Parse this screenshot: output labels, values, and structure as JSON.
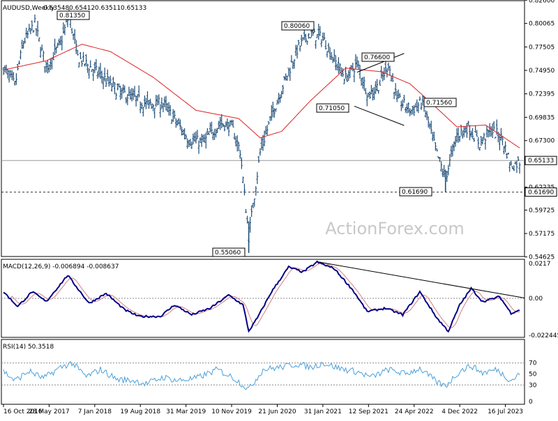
{
  "chart_data": [
    {
      "type": "bar",
      "subtype": "ohlc",
      "title": "AUDUSD,Weekly",
      "ohlc": {
        "open": "0.63548",
        "high": "0.65412",
        "low": "0.63511",
        "close": "0.65133"
      },
      "ylim": [
        0.5467,
        0.8262
      ],
      "y_tick_labels": [
        "0.82600",
        "0.80065",
        "0.77505",
        "0.74950",
        "0.72395",
        "0.69835",
        "0.67300",
        "0.62235",
        "0.59725",
        "0.57175",
        "0.54625"
      ],
      "x_tick_labels": [
        "16 Oct 2016",
        "28 May 2017",
        "7 Jan 2018",
        "19 Aug 2018",
        "31 Mar 2019",
        "10 Nov 2019",
        "21 Jun 2020",
        "31 Jan 2021",
        "12 Sep 2021",
        "24 Apr 2022",
        "4 Dec 2022",
        "16 Jul 2023"
      ],
      "current_price_label": "0.65133",
      "support_line_label": "0.61690",
      "annotations": [
        "0.81350",
        "0.80060",
        "0.76600",
        "0.71560",
        "0.71050",
        "0.61690",
        "0.55060"
      ],
      "overlay": "moving average (red)",
      "grid": false,
      "price_anchors": [
        {
          "bar": 0,
          "value": 0.752
        },
        {
          "bar": 8,
          "value": 0.733
        },
        {
          "bar": 14,
          "value": 0.78
        },
        {
          "bar": 22,
          "value": 0.8
        },
        {
          "bar": 30,
          "value": 0.752
        },
        {
          "bar": 40,
          "value": 0.779
        },
        {
          "bar": 46,
          "value": 0.81
        },
        {
          "bar": 52,
          "value": 0.764
        },
        {
          "bar": 60,
          "value": 0.754
        },
        {
          "bar": 70,
          "value": 0.742
        },
        {
          "bar": 80,
          "value": 0.727
        },
        {
          "bar": 92,
          "value": 0.719
        },
        {
          "bar": 100,
          "value": 0.713
        },
        {
          "bar": 112,
          "value": 0.713
        },
        {
          "bar": 122,
          "value": 0.692
        },
        {
          "bar": 130,
          "value": 0.674
        },
        {
          "bar": 140,
          "value": 0.671
        },
        {
          "bar": 152,
          "value": 0.692
        },
        {
          "bar": 160,
          "value": 0.688
        },
        {
          "bar": 166,
          "value": 0.662
        },
        {
          "bar": 172,
          "value": 0.568
        },
        {
          "bar": 180,
          "value": 0.66
        },
        {
          "bar": 188,
          "value": 0.7
        },
        {
          "bar": 196,
          "value": 0.733
        },
        {
          "bar": 206,
          "value": 0.772
        },
        {
          "bar": 214,
          "value": 0.789
        },
        {
          "bar": 224,
          "value": 0.785
        },
        {
          "bar": 232,
          "value": 0.761
        },
        {
          "bar": 240,
          "value": 0.741
        },
        {
          "bar": 248,
          "value": 0.757
        },
        {
          "bar": 256,
          "value": 0.722
        },
        {
          "bar": 264,
          "value": 0.735
        },
        {
          "bar": 270,
          "value": 0.757
        },
        {
          "bar": 276,
          "value": 0.718
        },
        {
          "bar": 286,
          "value": 0.706
        },
        {
          "bar": 294,
          "value": 0.715
        },
        {
          "bar": 304,
          "value": 0.658
        },
        {
          "bar": 310,
          "value": 0.632
        },
        {
          "bar": 318,
          "value": 0.679
        },
        {
          "bar": 326,
          "value": 0.688
        },
        {
          "bar": 334,
          "value": 0.67
        },
        {
          "bar": 342,
          "value": 0.685
        },
        {
          "bar": 350,
          "value": 0.675
        },
        {
          "bar": 356,
          "value": 0.645
        },
        {
          "bar": 362,
          "value": 0.65
        }
      ],
      "ma_anchors": [
        {
          "bar": 0,
          "value": 0.75
        },
        {
          "bar": 30,
          "value": 0.76
        },
        {
          "bar": 55,
          "value": 0.778
        },
        {
          "bar": 75,
          "value": 0.77
        },
        {
          "bar": 105,
          "value": 0.742
        },
        {
          "bar": 135,
          "value": 0.706
        },
        {
          "bar": 165,
          "value": 0.697
        },
        {
          "bar": 180,
          "value": 0.676
        },
        {
          "bar": 195,
          "value": 0.683
        },
        {
          "bar": 215,
          "value": 0.716
        },
        {
          "bar": 240,
          "value": 0.752
        },
        {
          "bar": 265,
          "value": 0.748
        },
        {
          "bar": 285,
          "value": 0.735
        },
        {
          "bar": 300,
          "value": 0.714
        },
        {
          "bar": 318,
          "value": 0.688
        },
        {
          "bar": 338,
          "value": 0.69
        },
        {
          "bar": 362,
          "value": 0.665
        }
      ],
      "colors": {
        "bars": "#1f4e79",
        "moving_average": "#dd2222",
        "current_price_line": "#999999"
      }
    },
    {
      "type": "line",
      "title": "MACD(12,26,9) -0.006894 -0.008637",
      "y_tick_labels": [
        "0.0217",
        "0.00",
        "-0.022445"
      ],
      "ylim": [
        -0.0237,
        0.0237
      ],
      "series": [
        {
          "name": "MACD"
        },
        {
          "name": "Signal"
        }
      ],
      "macd_anchors": [
        {
          "bar": 0,
          "value": 0.004
        },
        {
          "bar": 10,
          "value": -0.005
        },
        {
          "bar": 20,
          "value": 0.004
        },
        {
          "bar": 30,
          "value": -0.002
        },
        {
          "bar": 45,
          "value": 0.014
        },
        {
          "bar": 60,
          "value": -0.003
        },
        {
          "bar": 72,
          "value": 0.003
        },
        {
          "bar": 85,
          "value": -0.007
        },
        {
          "bar": 95,
          "value": -0.011
        },
        {
          "bar": 110,
          "value": -0.011
        },
        {
          "bar": 120,
          "value": -0.004
        },
        {
          "bar": 132,
          "value": -0.01
        },
        {
          "bar": 145,
          "value": -0.006
        },
        {
          "bar": 158,
          "value": 0.002
        },
        {
          "bar": 168,
          "value": -0.004
        },
        {
          "bar": 172,
          "value": -0.02
        },
        {
          "bar": 178,
          "value": -0.012
        },
        {
          "bar": 188,
          "value": 0.004
        },
        {
          "bar": 200,
          "value": 0.019
        },
        {
          "bar": 210,
          "value": 0.016
        },
        {
          "bar": 220,
          "value": 0.022
        },
        {
          "bar": 232,
          "value": 0.018
        },
        {
          "bar": 245,
          "value": 0.005
        },
        {
          "bar": 255,
          "value": -0.008
        },
        {
          "bar": 268,
          "value": -0.006
        },
        {
          "bar": 280,
          "value": -0.01
        },
        {
          "bar": 292,
          "value": 0.004
        },
        {
          "bar": 304,
          "value": -0.012
        },
        {
          "bar": 312,
          "value": -0.02
        },
        {
          "bar": 320,
          "value": -0.004
        },
        {
          "bar": 328,
          "value": 0.006
        },
        {
          "bar": 336,
          "value": -0.002
        },
        {
          "bar": 348,
          "value": 0.001
        },
        {
          "bar": 356,
          "value": -0.009
        },
        {
          "bar": 362,
          "value": -0.007
        }
      ],
      "colors": {
        "macd": "#000088",
        "signal": "#d08080",
        "trendline": "#000000"
      }
    },
    {
      "type": "line",
      "title": "RSI(14) 50.3518",
      "y_tick_labels": [
        "70",
        "50",
        "30",
        "0"
      ],
      "ylim": [
        0,
        100
      ],
      "levels": [
        70,
        30
      ],
      "series": [
        {
          "name": "RSI"
        }
      ],
      "rsi_anchors": [
        {
          "bar": 0,
          "value": 55
        },
        {
          "bar": 8,
          "value": 38
        },
        {
          "bar": 18,
          "value": 55
        },
        {
          "bar": 28,
          "value": 42
        },
        {
          "bar": 40,
          "value": 62
        },
        {
          "bar": 48,
          "value": 70
        },
        {
          "bar": 58,
          "value": 45
        },
        {
          "bar": 68,
          "value": 58
        },
        {
          "bar": 80,
          "value": 40
        },
        {
          "bar": 92,
          "value": 38
        },
        {
          "bar": 100,
          "value": 32
        },
        {
          "bar": 112,
          "value": 44
        },
        {
          "bar": 122,
          "value": 38
        },
        {
          "bar": 135,
          "value": 42
        },
        {
          "bar": 150,
          "value": 58
        },
        {
          "bar": 162,
          "value": 42
        },
        {
          "bar": 172,
          "value": 22
        },
        {
          "bar": 182,
          "value": 58
        },
        {
          "bar": 194,
          "value": 62
        },
        {
          "bar": 206,
          "value": 68
        },
        {
          "bar": 216,
          "value": 62
        },
        {
          "bar": 224,
          "value": 70
        },
        {
          "bar": 236,
          "value": 60
        },
        {
          "bar": 248,
          "value": 54
        },
        {
          "bar": 258,
          "value": 44
        },
        {
          "bar": 270,
          "value": 58
        },
        {
          "bar": 282,
          "value": 50
        },
        {
          "bar": 292,
          "value": 60
        },
        {
          "bar": 304,
          "value": 35
        },
        {
          "bar": 310,
          "value": 28
        },
        {
          "bar": 320,
          "value": 55
        },
        {
          "bar": 328,
          "value": 65
        },
        {
          "bar": 336,
          "value": 52
        },
        {
          "bar": 346,
          "value": 58
        },
        {
          "bar": 356,
          "value": 38
        },
        {
          "bar": 362,
          "value": 50
        }
      ],
      "colors": {
        "rsi": "#4aa0d8",
        "levels": "#888888"
      }
    }
  ],
  "watermark": "ActionForex.com"
}
